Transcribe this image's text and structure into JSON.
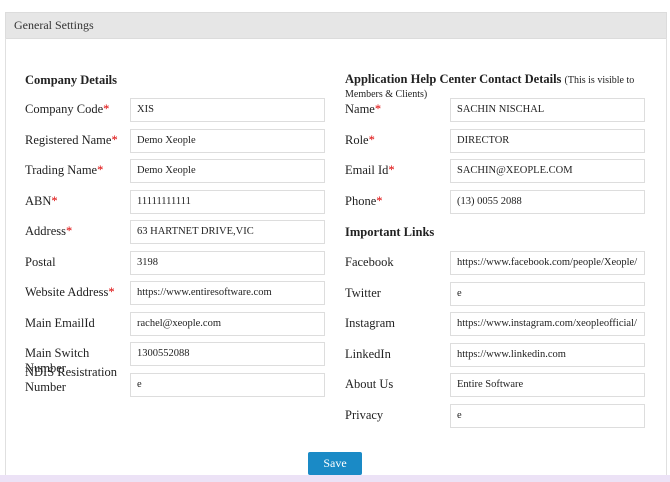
{
  "header": {
    "title": "General Settings"
  },
  "required_mark": "*",
  "company": {
    "title": "Company Details",
    "fields": [
      {
        "label": "Company Code",
        "required": true,
        "value": "XIS"
      },
      {
        "label": "Registered Name",
        "required": true,
        "value": "Demo Xeople"
      },
      {
        "label": "Trading Name",
        "required": true,
        "value": "Demo Xeople"
      },
      {
        "label": "ABN",
        "required": true,
        "value": "11111111111"
      },
      {
        "label": "Address",
        "required": true,
        "value": "63 HARTNET DRIVE,VIC"
      },
      {
        "label": "Postal",
        "required": false,
        "value": "3198"
      },
      {
        "label": "Website Address",
        "required": true,
        "value": "https://www.entiresoftware.com"
      },
      {
        "label": "Main EmailId",
        "required": false,
        "value": "rachel@xeople.com"
      },
      {
        "label": "Main Switch Number",
        "required": false,
        "value": "1300552088"
      },
      {
        "label": "NDIS Resistration Number",
        "required": false,
        "value": "e"
      }
    ]
  },
  "contact": {
    "title": "Application Help Center Contact Details",
    "note": "(This is visible to Members & Clients)",
    "fields": [
      {
        "label": "Name",
        "required": true,
        "value": "SACHIN NISCHAL"
      },
      {
        "label": "Role",
        "required": true,
        "value": "DIRECTOR"
      },
      {
        "label": "Email Id",
        "required": true,
        "value": "SACHIN@XEOPLE.COM"
      },
      {
        "label": "Phone",
        "required": true,
        "value": "(13) 0055 2088"
      }
    ]
  },
  "links": {
    "title": "Important Links",
    "fields": [
      {
        "label": "Facebook",
        "required": false,
        "value": "https://www.facebook.com/people/Xeople/"
      },
      {
        "label": "Twitter",
        "required": false,
        "value": "e"
      },
      {
        "label": "Instagram",
        "required": false,
        "value": "https://www.instagram.com/xeopleofficial/"
      },
      {
        "label": "LinkedIn",
        "required": false,
        "value": "https://www.linkedin.com"
      },
      {
        "label": "About Us",
        "required": false,
        "value": "Entire Software"
      },
      {
        "label": "Privacy",
        "required": false,
        "value": "e"
      }
    ]
  },
  "save": "Save"
}
